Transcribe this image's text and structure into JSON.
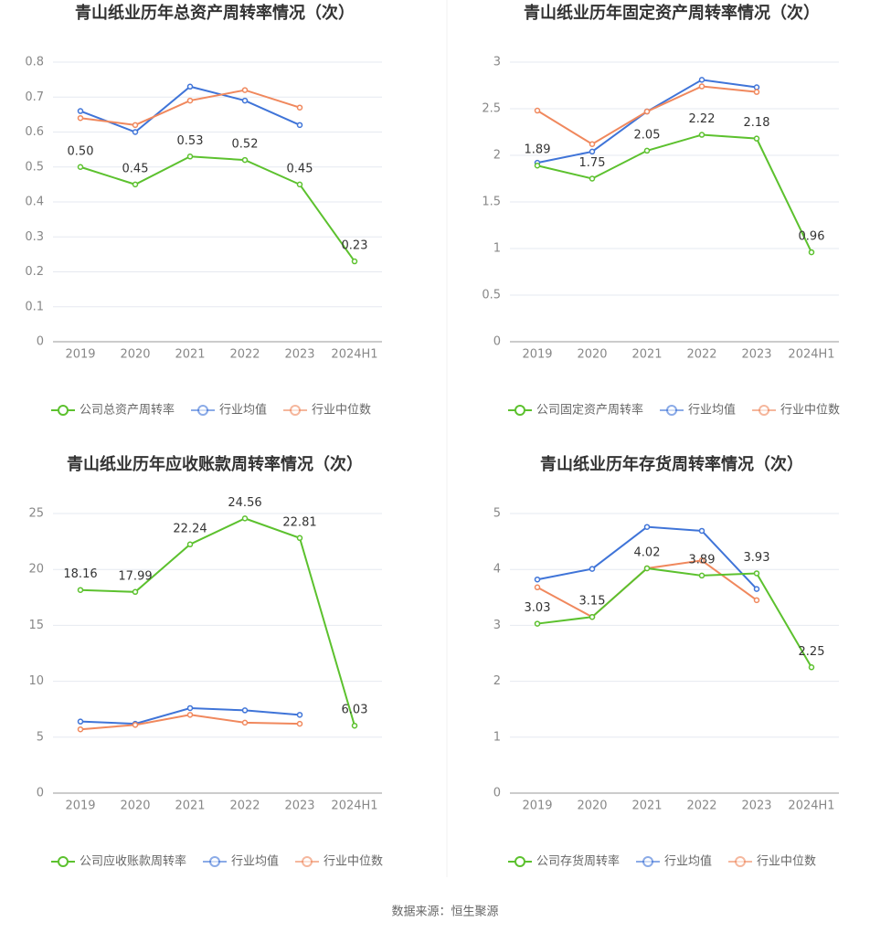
{
  "chart_data": [
    {
      "type": "line",
      "title": "青山纸业历年总资产周转率情况（次）",
      "categories": [
        "2019",
        "2020",
        "2021",
        "2022",
        "2023",
        "2024H1"
      ],
      "series": [
        {
          "name": "公司总资产周转率",
          "color": "#5cc12e",
          "values": [
            0.5,
            0.45,
            0.53,
            0.52,
            0.45,
            0.23
          ],
          "value_labels": [
            "0.50",
            "0.45",
            "0.53",
            "0.52",
            "0.45",
            "0.23"
          ]
        },
        {
          "name": "行业均值",
          "color": "#3f74d8",
          "values": [
            0.66,
            0.6,
            0.73,
            0.69,
            0.62,
            null
          ]
        },
        {
          "name": "行业中位数",
          "color": "#f0885d",
          "values": [
            0.64,
            0.62,
            0.69,
            0.72,
            0.67,
            null
          ]
        }
      ],
      "ylim": [
        0,
        0.8
      ],
      "yticks": [
        0,
        0.1,
        0.2,
        0.3,
        0.4,
        0.5,
        0.6,
        0.7,
        0.8
      ],
      "grid": true
    },
    {
      "type": "line",
      "title": "青山纸业历年固定资产周转率情况（次）",
      "categories": [
        "2019",
        "2020",
        "2021",
        "2022",
        "2023",
        "2024H1"
      ],
      "series": [
        {
          "name": "公司固定资产周转率",
          "color": "#5cc12e",
          "values": [
            1.89,
            1.75,
            2.05,
            2.22,
            2.18,
            0.96
          ]
        },
        {
          "name": "行业均值",
          "color": "#3f74d8",
          "values": [
            1.92,
            2.04,
            2.47,
            2.81,
            2.73,
            null
          ]
        },
        {
          "name": "行业中位数",
          "color": "#f0885d",
          "values": [
            2.48,
            2.12,
            2.47,
            2.74,
            2.68,
            null
          ]
        }
      ],
      "ylim": [
        0,
        3
      ],
      "yticks": [
        0,
        0.5,
        1,
        1.5,
        2,
        2.5,
        3
      ],
      "grid": true
    },
    {
      "type": "line",
      "title": "青山纸业历年应收账款周转率情况（次）",
      "categories": [
        "2019",
        "2020",
        "2021",
        "2022",
        "2023",
        "2024H1"
      ],
      "series": [
        {
          "name": "公司应收账款周转率",
          "color": "#5cc12e",
          "values": [
            18.16,
            17.99,
            22.24,
            24.56,
            22.81,
            6.03
          ]
        },
        {
          "name": "行业均值",
          "color": "#3f74d8",
          "values": [
            6.4,
            6.2,
            7.6,
            7.4,
            7.0,
            null
          ]
        },
        {
          "name": "行业中位数",
          "color": "#f0885d",
          "values": [
            5.7,
            6.1,
            7.0,
            6.3,
            6.2,
            null
          ]
        }
      ],
      "ylim": [
        0,
        25
      ],
      "yticks": [
        0,
        5,
        10,
        15,
        20,
        25
      ],
      "grid": true
    },
    {
      "type": "line",
      "title": "青山纸业历年存货周转率情况（次）",
      "categories": [
        "2019",
        "2020",
        "2021",
        "2022",
        "2023",
        "2024H1"
      ],
      "series": [
        {
          "name": "公司存货周转率",
          "color": "#5cc12e",
          "values": [
            3.03,
            3.15,
            4.02,
            3.89,
            3.93,
            2.25
          ]
        },
        {
          "name": "行业均值",
          "color": "#3f74d8",
          "values": [
            3.82,
            4.01,
            4.76,
            4.69,
            3.65,
            null
          ]
        },
        {
          "name": "行业中位数",
          "color": "#f0885d",
          "values": [
            3.68,
            3.15,
            4.02,
            4.16,
            3.45,
            null
          ]
        }
      ],
      "ylim": [
        0,
        5
      ],
      "yticks": [
        0,
        1,
        2,
        3,
        4,
        5
      ],
      "grid": true
    }
  ],
  "source": "数据来源：恒生聚源"
}
